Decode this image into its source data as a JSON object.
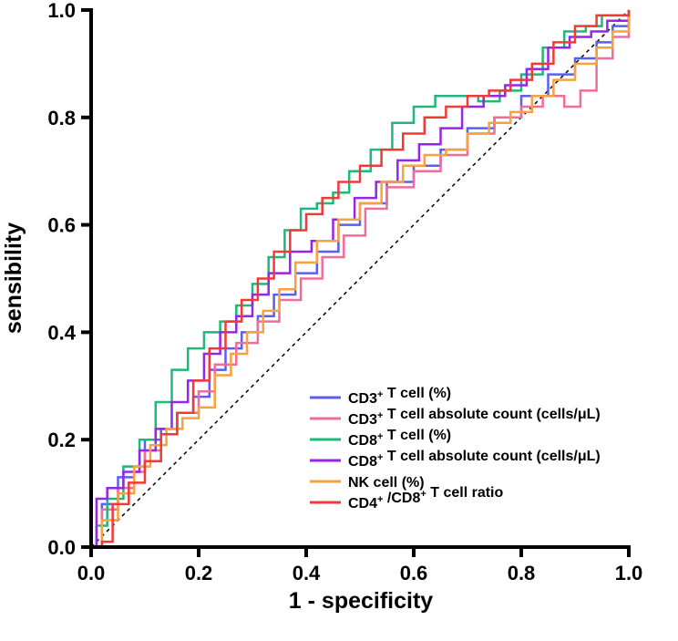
{
  "chart_data": {
    "type": "line",
    "xlabel": "1 - specificity",
    "ylabel": "sensibility",
    "xlim": [
      0,
      1
    ],
    "ylim": [
      0,
      1
    ],
    "x_ticks": [
      "0.0",
      "0.2",
      "0.4",
      "0.6",
      "0.8",
      "1.0"
    ],
    "y_ticks": [
      "0.0",
      "0.2",
      "0.4",
      "0.6",
      "0.8",
      "1.0"
    ],
    "reference_line": {
      "style": "dashed",
      "from": [
        0,
        0
      ],
      "to": [
        1,
        1
      ]
    },
    "legend_position": "lower-right",
    "series": [
      {
        "base": "CD3",
        "sup": "+",
        "rest": " T cell (%)",
        "color": "#5b5ef0",
        "points": [
          [
            0,
            0
          ],
          [
            0.02,
            0.08
          ],
          [
            0.05,
            0.13
          ],
          [
            0.08,
            0.15
          ],
          [
            0.1,
            0.2
          ],
          [
            0.13,
            0.22
          ],
          [
            0.16,
            0.25
          ],
          [
            0.19,
            0.28
          ],
          [
            0.22,
            0.33
          ],
          [
            0.25,
            0.37
          ],
          [
            0.28,
            0.4
          ],
          [
            0.31,
            0.43
          ],
          [
            0.34,
            0.47
          ],
          [
            0.38,
            0.51
          ],
          [
            0.42,
            0.55
          ],
          [
            0.46,
            0.6
          ],
          [
            0.5,
            0.64
          ],
          [
            0.55,
            0.68
          ],
          [
            0.6,
            0.71
          ],
          [
            0.65,
            0.74
          ],
          [
            0.7,
            0.78
          ],
          [
            0.75,
            0.8
          ],
          [
            0.8,
            0.84
          ],
          [
            0.85,
            0.88
          ],
          [
            0.9,
            0.91
          ],
          [
            0.94,
            0.94
          ],
          [
            0.97,
            0.97
          ],
          [
            1,
            1
          ]
        ]
      },
      {
        "base": "CD3",
        "sup": "+",
        "rest": " T cell absolute count (cells/μL)",
        "color": "#f06c9b",
        "points": [
          [
            0,
            0
          ],
          [
            0.02,
            0.07
          ],
          [
            0.05,
            0.11
          ],
          [
            0.08,
            0.14
          ],
          [
            0.1,
            0.18
          ],
          [
            0.13,
            0.21
          ],
          [
            0.16,
            0.25
          ],
          [
            0.2,
            0.29
          ],
          [
            0.23,
            0.34
          ],
          [
            0.27,
            0.38
          ],
          [
            0.31,
            0.42
          ],
          [
            0.35,
            0.46
          ],
          [
            0.39,
            0.5
          ],
          [
            0.43,
            0.54
          ],
          [
            0.47,
            0.58
          ],
          [
            0.51,
            0.63
          ],
          [
            0.55,
            0.67
          ],
          [
            0.6,
            0.7
          ],
          [
            0.65,
            0.73
          ],
          [
            0.7,
            0.77
          ],
          [
            0.75,
            0.8
          ],
          [
            0.8,
            0.82
          ],
          [
            0.84,
            0.84
          ],
          [
            0.88,
            0.82
          ],
          [
            0.91,
            0.85
          ],
          [
            0.94,
            0.91
          ],
          [
            0.97,
            0.95
          ],
          [
            1,
            1
          ]
        ]
      },
      {
        "base": "CD8",
        "sup": "+",
        "rest": " T cell (%)",
        "color": "#1db87a",
        "points": [
          [
            0,
            0
          ],
          [
            0.01,
            0.04
          ],
          [
            0.03,
            0.09
          ],
          [
            0.06,
            0.15
          ],
          [
            0.09,
            0.2
          ],
          [
            0.12,
            0.27
          ],
          [
            0.15,
            0.33
          ],
          [
            0.18,
            0.37
          ],
          [
            0.21,
            0.4
          ],
          [
            0.24,
            0.42
          ],
          [
            0.27,
            0.45
          ],
          [
            0.3,
            0.49
          ],
          [
            0.33,
            0.54
          ],
          [
            0.36,
            0.59
          ],
          [
            0.39,
            0.63
          ],
          [
            0.42,
            0.64
          ],
          [
            0.45,
            0.66
          ],
          [
            0.48,
            0.7
          ],
          [
            0.52,
            0.74
          ],
          [
            0.56,
            0.79
          ],
          [
            0.6,
            0.82
          ],
          [
            0.64,
            0.84
          ],
          [
            0.68,
            0.84
          ],
          [
            0.72,
            0.83
          ],
          [
            0.76,
            0.85
          ],
          [
            0.8,
            0.88
          ],
          [
            0.84,
            0.93
          ],
          [
            0.88,
            0.96
          ],
          [
            0.92,
            0.97
          ],
          [
            0.95,
            0.99
          ],
          [
            1,
            1
          ]
        ]
      },
      {
        "base": "CD8",
        "sup": "+",
        "rest": " T cell absolute count (cells/μL)",
        "color": "#9624ea",
        "points": [
          [
            0,
            0
          ],
          [
            0.01,
            0.09
          ],
          [
            0.03,
            0.11
          ],
          [
            0.06,
            0.14
          ],
          [
            0.09,
            0.18
          ],
          [
            0.12,
            0.22
          ],
          [
            0.15,
            0.27
          ],
          [
            0.18,
            0.31
          ],
          [
            0.21,
            0.36
          ],
          [
            0.24,
            0.4
          ],
          [
            0.27,
            0.43
          ],
          [
            0.3,
            0.47
          ],
          [
            0.33,
            0.51
          ],
          [
            0.37,
            0.55
          ],
          [
            0.41,
            0.57
          ],
          [
            0.45,
            0.61
          ],
          [
            0.49,
            0.65
          ],
          [
            0.53,
            0.68
          ],
          [
            0.57,
            0.72
          ],
          [
            0.61,
            0.75
          ],
          [
            0.65,
            0.78
          ],
          [
            0.69,
            0.82
          ],
          [
            0.73,
            0.84
          ],
          [
            0.77,
            0.86
          ],
          [
            0.81,
            0.89
          ],
          [
            0.85,
            0.93
          ],
          [
            0.89,
            0.95
          ],
          [
            0.93,
            0.96
          ],
          [
            0.96,
            0.98
          ],
          [
            1,
            1
          ]
        ]
      },
      {
        "base": "NK cell (%)",
        "sup": "",
        "rest": "",
        "color": "#f5a23f",
        "points": [
          [
            0,
            0
          ],
          [
            0.02,
            0.05
          ],
          [
            0.05,
            0.1
          ],
          [
            0.08,
            0.15
          ],
          [
            0.11,
            0.19
          ],
          [
            0.14,
            0.22
          ],
          [
            0.17,
            0.24
          ],
          [
            0.2,
            0.26
          ],
          [
            0.23,
            0.32
          ],
          [
            0.26,
            0.36
          ],
          [
            0.29,
            0.4
          ],
          [
            0.32,
            0.44
          ],
          [
            0.35,
            0.48
          ],
          [
            0.38,
            0.53
          ],
          [
            0.42,
            0.57
          ],
          [
            0.46,
            0.61
          ],
          [
            0.5,
            0.64
          ],
          [
            0.54,
            0.68
          ],
          [
            0.58,
            0.71
          ],
          [
            0.62,
            0.73
          ],
          [
            0.66,
            0.74
          ],
          [
            0.7,
            0.77
          ],
          [
            0.74,
            0.79
          ],
          [
            0.78,
            0.81
          ],
          [
            0.82,
            0.84
          ],
          [
            0.86,
            0.87
          ],
          [
            0.9,
            0.9
          ],
          [
            0.94,
            0.93
          ],
          [
            0.97,
            0.96
          ],
          [
            1,
            1
          ]
        ]
      },
      {
        "base": "CD4",
        "sup": "+",
        "rest": " /CD8",
        "base2": "",
        "sup2": "+",
        "rest2": " T cell ratio",
        "color": "#f03a3a",
        "points": [
          [
            0,
            0
          ],
          [
            0.02,
            0.01
          ],
          [
            0.04,
            0.08
          ],
          [
            0.07,
            0.12
          ],
          [
            0.1,
            0.16
          ],
          [
            0.13,
            0.21
          ],
          [
            0.16,
            0.25
          ],
          [
            0.19,
            0.31
          ],
          [
            0.22,
            0.37
          ],
          [
            0.25,
            0.42
          ],
          [
            0.28,
            0.46
          ],
          [
            0.31,
            0.5
          ],
          [
            0.34,
            0.55
          ],
          [
            0.37,
            0.59
          ],
          [
            0.4,
            0.62
          ],
          [
            0.43,
            0.65
          ],
          [
            0.46,
            0.68
          ],
          [
            0.5,
            0.71
          ],
          [
            0.54,
            0.74
          ],
          [
            0.58,
            0.77
          ],
          [
            0.62,
            0.8
          ],
          [
            0.66,
            0.82
          ],
          [
            0.7,
            0.84
          ],
          [
            0.74,
            0.85
          ],
          [
            0.78,
            0.87
          ],
          [
            0.82,
            0.9
          ],
          [
            0.86,
            0.94
          ],
          [
            0.9,
            0.97
          ],
          [
            0.94,
            0.99
          ],
          [
            1,
            1
          ]
        ]
      }
    ]
  }
}
